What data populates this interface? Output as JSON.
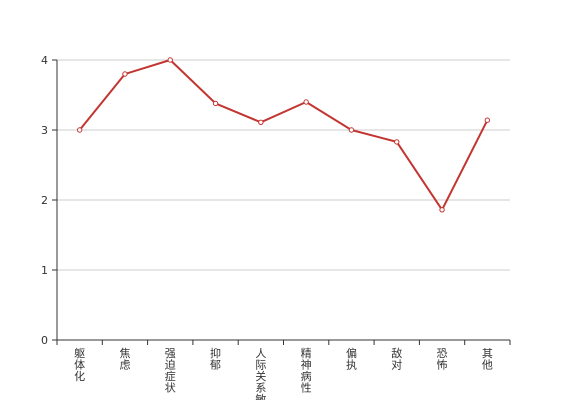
{
  "chart_data": {
    "type": "line",
    "categories": [
      "躯体化",
      "焦虑",
      "强迫症状",
      "抑郁",
      "人际关系敏感",
      "精神病性",
      "偏执",
      "敌对",
      "恐怖",
      "其他"
    ],
    "series": [
      {
        "values": [
          3.0,
          3.8,
          4.0,
          3.38,
          3.11,
          3.4,
          3.0,
          2.83,
          1.86,
          3.14
        ]
      }
    ],
    "yticks": [
      0,
      1,
      2,
      3,
      4
    ],
    "ylim": [
      0,
      4
    ],
    "grid": true,
    "line_color": "#c23531",
    "grid_color": "#cccccc",
    "axis_color": "#333333"
  }
}
